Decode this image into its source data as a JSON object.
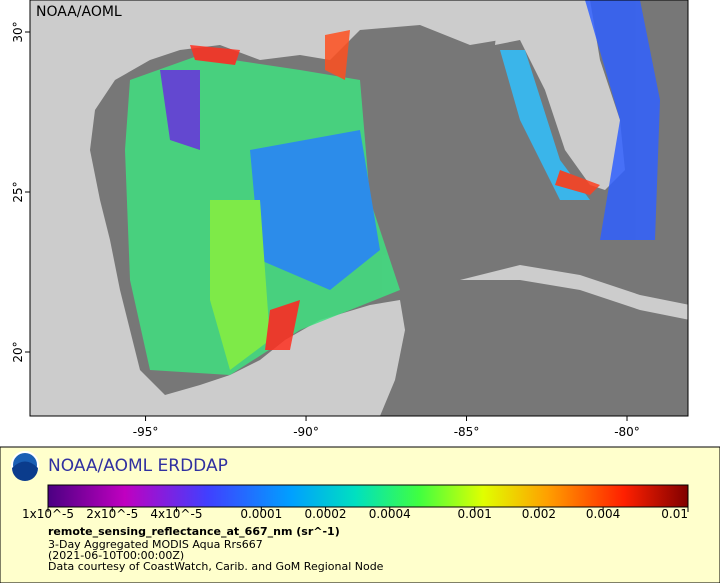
{
  "map": {
    "watermark": "NOAA/AOML",
    "xlim": [
      -98.6,
      -78.1
    ],
    "ylim": [
      18,
      31
    ],
    "xticks": [
      {
        "value": -95,
        "label": "-95°"
      },
      {
        "value": -90,
        "label": "-90°"
      },
      {
        "value": -85,
        "label": "-85°"
      },
      {
        "value": -80,
        "label": "-80°"
      }
    ],
    "yticks": [
      {
        "value": 20,
        "label": "20°"
      },
      {
        "value": 25,
        "label": "25°"
      },
      {
        "value": 30,
        "label": "30°"
      }
    ]
  },
  "legend": {
    "title": "NOAA/AOML ERDDAP",
    "colorbar": {
      "scale": "log",
      "lim": [
        1e-05,
        0.01
      ],
      "ticks": [
        {
          "value": 1e-05,
          "label": "1x10^-5"
        },
        {
          "value": 2e-05,
          "label": "2x10^-5"
        },
        {
          "value": 4e-05,
          "label": "4x10^-5"
        },
        0.0001,
        0.0002,
        0.0004,
        0.001,
        0.002,
        0.004,
        0.01
      ]
    },
    "variable": "remote_sensing_reflectance_at_667_nm (sr^-1)",
    "lines": [
      "3-Day Aggregated MODIS Aqua Rrs667",
      "(2021-06-10T00:00:00Z)",
      "Data courtesy of CoastWatch, Carib. and GoM Regional Node"
    ]
  }
}
